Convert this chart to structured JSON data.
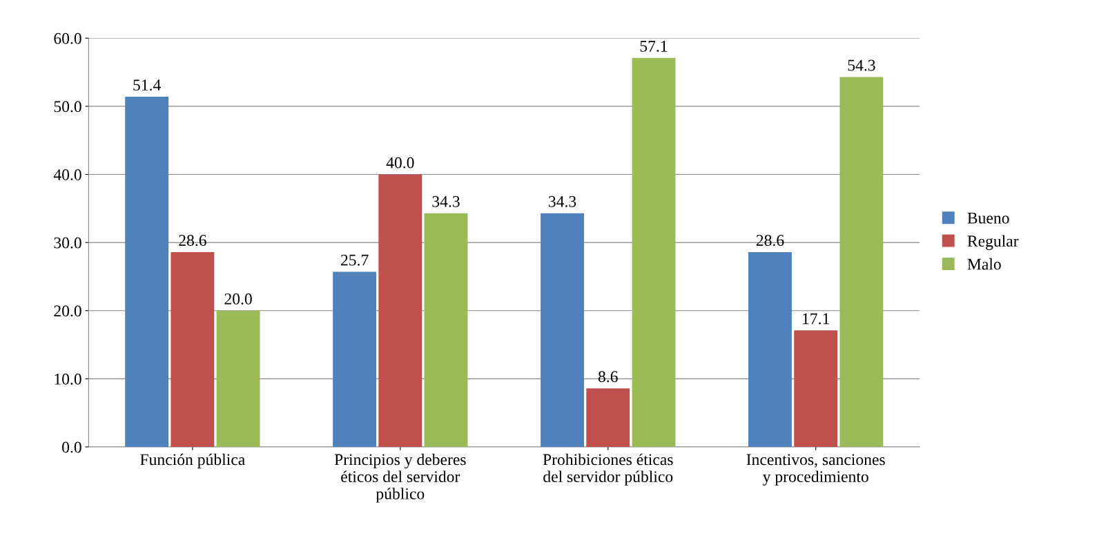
{
  "chart_data": {
    "type": "bar",
    "categories": [
      "Función pública",
      "Principios y deberes éticos del servidor público",
      "Prohibiciones éticas del servidor público",
      "Incentivos, sanciones y procedimiento"
    ],
    "series": [
      {
        "name": "Bueno",
        "color": "#4f81bd",
        "values": [
          51.4,
          25.7,
          34.3,
          28.6
        ],
        "value_labels": [
          "51.4",
          "25.7",
          "34.3",
          "28.6"
        ]
      },
      {
        "name": "Regular",
        "color": "#c0504d",
        "values": [
          28.6,
          40.0,
          8.6,
          17.1
        ],
        "value_labels": [
          "28.6",
          "40.0",
          "8.6",
          "17.1"
        ]
      },
      {
        "name": "Malo",
        "color": "#9bbb59",
        "values": [
          20.0,
          34.3,
          57.1,
          54.3
        ],
        "value_labels": [
          "20.0",
          "34.3",
          "57.1",
          "54.3"
        ]
      }
    ],
    "ylim": [
      0,
      60
    ],
    "yticks": [
      {
        "value": 0,
        "label": "0.0"
      },
      {
        "value": 10,
        "label": "10.0"
      },
      {
        "value": 20,
        "label": "20.0"
      },
      {
        "value": 30,
        "label": "30.0"
      },
      {
        "value": 40,
        "label": "40.0"
      },
      {
        "value": 50,
        "label": "50.0"
      },
      {
        "value": 60,
        "label": "60.0"
      }
    ],
    "grid": "y",
    "legend": "right"
  }
}
